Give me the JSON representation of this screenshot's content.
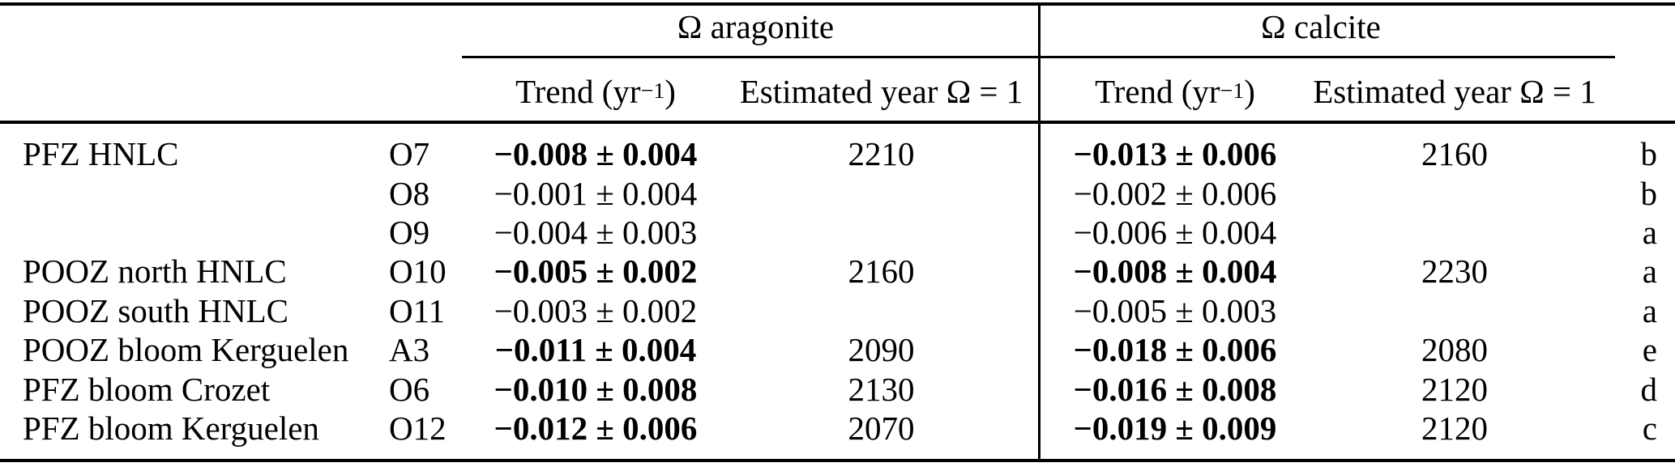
{
  "page": {
    "background_color": "#ffffff",
    "text_color": "#000000"
  },
  "table": {
    "groups": [
      {
        "label": "Ω aragonite"
      },
      {
        "label": "Ω calcite"
      }
    ],
    "subheaders": {
      "trend_base": "Trend (yr",
      "trend_exp": "−1",
      "trend_close": ")",
      "est_year": "Estimated year Ω = 1"
    },
    "rows": [
      {
        "zone": "PFZ HNLC",
        "station": "O7",
        "aragonite_trend": "−0.008 ± 0.004",
        "aragonite_year": "2210",
        "calcite_trend": "−0.013 ± 0.006",
        "calcite_year": "2160",
        "note": "b",
        "bold": true
      },
      {
        "zone": "",
        "station": "O8",
        "aragonite_trend": "−0.001 ± 0.004",
        "aragonite_year": "",
        "calcite_trend": "−0.002 ± 0.006",
        "calcite_year": "",
        "note": "b",
        "bold": false
      },
      {
        "zone": "",
        "station": "O9",
        "aragonite_trend": "−0.004 ± 0.003",
        "aragonite_year": "",
        "calcite_trend": "−0.006 ± 0.004",
        "calcite_year": "",
        "note": "a",
        "bold": false
      },
      {
        "zone": "POOZ north HNLC",
        "station": "O10",
        "aragonite_trend": "−0.005 ± 0.002",
        "aragonite_year": "2160",
        "calcite_trend": "−0.008 ± 0.004",
        "calcite_year": "2230",
        "note": "a",
        "bold": true
      },
      {
        "zone": "POOZ south HNLC",
        "station": "O11",
        "aragonite_trend": "−0.003 ± 0.002",
        "aragonite_year": "",
        "calcite_trend": "−0.005 ± 0.003",
        "calcite_year": "",
        "note": "a",
        "bold": false
      },
      {
        "zone": "POOZ bloom Kerguelen",
        "station": "A3",
        "aragonite_trend": "−0.011 ± 0.004",
        "aragonite_year": "2090",
        "calcite_trend": "−0.018 ± 0.006",
        "calcite_year": "2080",
        "note": "e",
        "bold": true
      },
      {
        "zone": "PFZ bloom Crozet",
        "station": "O6",
        "aragonite_trend": "−0.010 ± 0.008",
        "aragonite_year": "2130",
        "calcite_trend": "−0.016 ± 0.008",
        "calcite_year": "2120",
        "note": "d",
        "bold": true
      },
      {
        "zone": "PFZ bloom Kerguelen",
        "station": "O12",
        "aragonite_trend": "−0.012 ± 0.006",
        "aragonite_year": "2070",
        "calcite_trend": "−0.019 ± 0.009",
        "calcite_year": "2120",
        "note": "c",
        "bold": true
      }
    ]
  }
}
